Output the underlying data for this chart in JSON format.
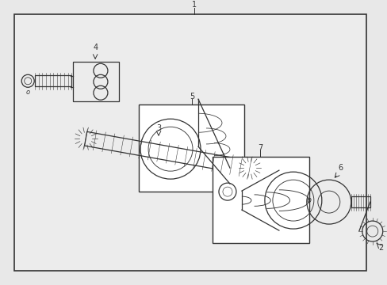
{
  "bg_color": "#e8e8e8",
  "inner_bg": "#ececec",
  "box_color": "#ffffff",
  "line_color": "#333333",
  "fig_width": 4.89,
  "fig_height": 3.6,
  "dpi": 100
}
